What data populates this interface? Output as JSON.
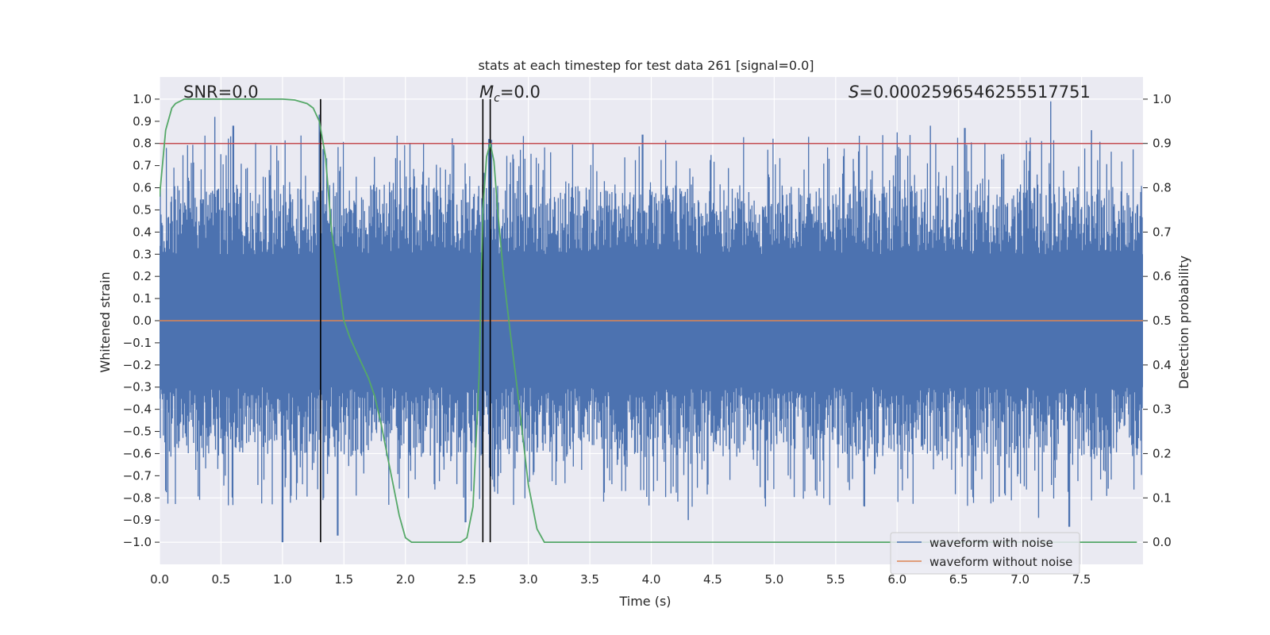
{
  "chart_data": {
    "type": "line",
    "title": "stats at each timestep for test data 261 [signal=0.0]",
    "xlabel": "Time (s)",
    "ylabel": "Whitened strain",
    "y2label": "Detection probability",
    "xlim": [
      0.0,
      8.0
    ],
    "ylim": [
      -1.1,
      1.1
    ],
    "y2lim": [
      -0.05,
      1.05
    ],
    "xticks": [
      "0.0",
      "0.5",
      "1.0",
      "1.5",
      "2.0",
      "2.5",
      "3.0",
      "3.5",
      "4.0",
      "4.5",
      "5.0",
      "5.5",
      "6.0",
      "6.5",
      "7.0",
      "7.5"
    ],
    "yticks": [
      "1.0",
      "0.9",
      "0.8",
      "0.7",
      "0.6",
      "0.5",
      "0.4",
      "0.3",
      "0.2",
      "0.1",
      "0.0",
      "−0.1",
      "−0.2",
      "−0.3",
      "−0.4",
      "−0.5",
      "−0.6",
      "−0.7",
      "−0.8",
      "−0.9",
      "−1.0"
    ],
    "y2ticks": [
      "1.0",
      "0.9",
      "0.8",
      "0.7",
      "0.6",
      "0.5",
      "0.4",
      "0.3",
      "0.2",
      "0.1",
      "0.0"
    ],
    "annotations": {
      "snr": "SNR=0.0",
      "mc_symbol": "M",
      "mc_sub": "c",
      "mc_value": "=0.0",
      "s_symbol": "S",
      "s_value": "=0.0002596546255517751"
    },
    "threshold_y2": 0.9,
    "vertical_lines_x": [
      1.31,
      2.63,
      2.69
    ],
    "series": [
      {
        "name": "waveform with noise",
        "color": "#4c72b0",
        "envelope": {
          "upper_typical": 0.5,
          "lower_typical": -0.55,
          "core": 0.3,
          "upper_peaks": [
            [
              0.45,
              0.92
            ],
            [
              0.6,
              0.88
            ],
            [
              1.3,
              0.93
            ],
            [
              2.68,
              0.82
            ],
            [
              3.93,
              0.84
            ],
            [
              5.28,
              0.83
            ],
            [
              6.0,
              0.85
            ],
            [
              6.27,
              0.88
            ],
            [
              6.55,
              0.87
            ],
            [
              7.25,
              0.99
            ],
            [
              7.58,
              0.86
            ]
          ],
          "lower_peaks": [
            [
              1.0,
              -1.0
            ],
            [
              1.45,
              -0.97
            ],
            [
              2.49,
              -0.91
            ],
            [
              2.72,
              -0.75
            ],
            [
              4.3,
              -0.9
            ],
            [
              7.15,
              -0.89
            ],
            [
              7.4,
              -0.93
            ]
          ]
        }
      },
      {
        "name": "waveform without noise",
        "color": "#dd8452",
        "values_constant": 0.0
      },
      {
        "name": "detection probability",
        "color": "#55a868",
        "axis": "y2",
        "x": [
          0.0,
          0.05,
          0.1,
          0.13,
          0.2,
          0.4,
          0.6,
          0.8,
          1.0,
          1.1,
          1.2,
          1.25,
          1.3,
          1.35,
          1.4,
          1.45,
          1.5,
          1.55,
          1.6,
          1.65,
          1.7,
          1.75,
          1.8,
          1.85,
          1.9,
          1.95,
          2.0,
          2.05,
          2.1,
          2.2,
          2.3,
          2.4,
          2.45,
          2.5,
          2.55,
          2.6,
          2.63,
          2.66,
          2.69,
          2.72,
          2.75,
          2.8,
          2.85,
          2.9,
          2.95,
          3.0,
          3.07,
          3.13,
          3.5,
          4.0,
          4.5,
          5.0,
          5.5,
          6.0,
          6.5,
          7.0,
          7.5,
          7.95
        ],
        "values": [
          0.78,
          0.93,
          0.98,
          0.99,
          1.0,
          1.0,
          1.0,
          1.0,
          1.0,
          0.998,
          0.99,
          0.98,
          0.95,
          0.87,
          0.7,
          0.6,
          0.5,
          0.46,
          0.43,
          0.4,
          0.37,
          0.33,
          0.27,
          0.2,
          0.13,
          0.06,
          0.01,
          0.0,
          0.0,
          0.0,
          0.0,
          0.0,
          0.0,
          0.01,
          0.08,
          0.38,
          0.75,
          0.87,
          0.9,
          0.86,
          0.75,
          0.6,
          0.48,
          0.37,
          0.25,
          0.13,
          0.03,
          0.0,
          0.0,
          0.0,
          0.0,
          0.0,
          0.0,
          0.0,
          0.0,
          0.0,
          0.0,
          0.0
        ]
      }
    ],
    "legend": {
      "location": "lower-right",
      "entries": [
        "waveform with noise",
        "waveform without noise"
      ]
    },
    "colors": {
      "plot_background": "#eaeaf2",
      "grid": "#ffffff",
      "threshold_line": "#c44e52",
      "vertical_lines": "#000000"
    }
  }
}
